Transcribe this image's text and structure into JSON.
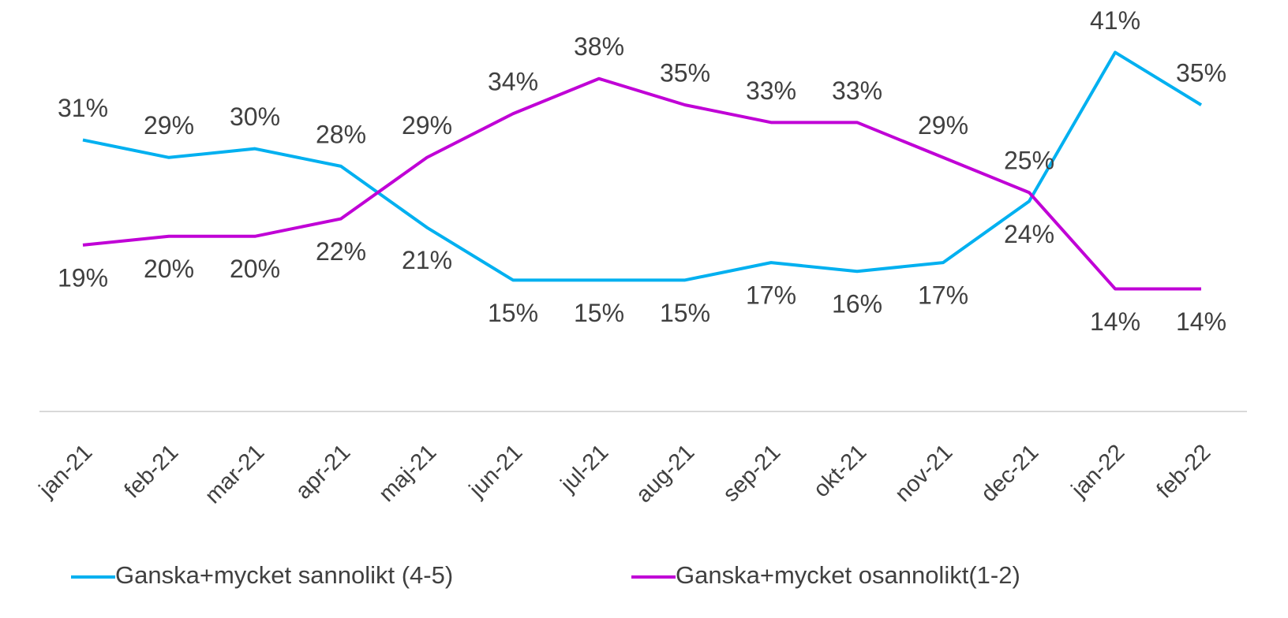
{
  "chart_data": {
    "type": "line",
    "categories": [
      "jan-21",
      "feb-21",
      "mar-21",
      "apr-21",
      "maj-21",
      "jun-21",
      "jul-21",
      "aug-21",
      "sep-21",
      "okt-21",
      "nov-21",
      "dec-21",
      "jan-22",
      "feb-22"
    ],
    "series": [
      {
        "name": "Ganska+mycket sannolikt (4-5)",
        "color": "#00b0f0",
        "values": [
          31,
          29,
          30,
          28,
          21,
          15,
          15,
          15,
          17,
          16,
          17,
          24,
          41,
          35
        ],
        "value_labels": [
          "31%",
          "29%",
          "30%",
          "28%",
          "21%",
          "15%",
          "15%",
          "15%",
          "17%",
          "16%",
          "17%",
          "24%",
          "41%",
          "35%"
        ]
      },
      {
        "name": "Ganska+mycket osannolikt(1-2)",
        "color": "#c000d6",
        "values": [
          19,
          20,
          20,
          22,
          29,
          34,
          38,
          35,
          33,
          33,
          29,
          25,
          14,
          14
        ],
        "value_labels": [
          "19%",
          "20%",
          "20%",
          "22%",
          "29%",
          "34%",
          "38%",
          "35%",
          "33%",
          "33%",
          "29%",
          "25%",
          "14%",
          "14%"
        ]
      }
    ],
    "ylim": [
      0,
      45
    ],
    "legend": "bottom"
  }
}
